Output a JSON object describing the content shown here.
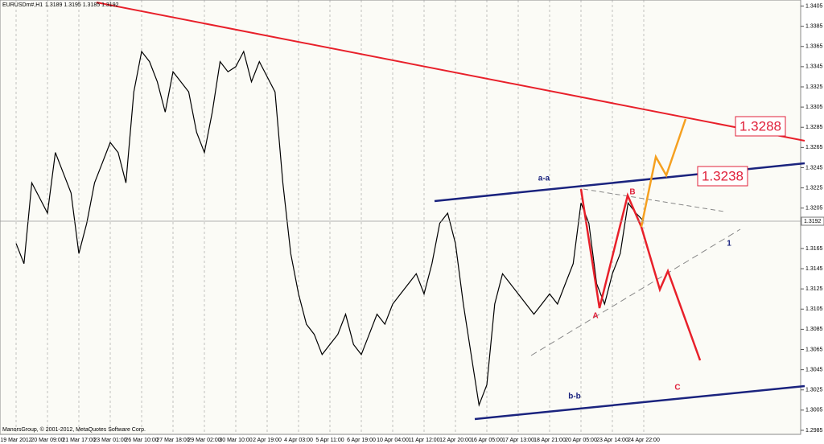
{
  "header": {
    "title": "EURUSDm#,H1",
    "ohlc": "1.3189 1.3195 1.3185 1.3192"
  },
  "footer": "ManorsGroup, © 2001-2012, MetaQuotes Software Corp.",
  "chart_data": {
    "type": "line",
    "color": "#000000",
    "categories": [
      "19 Mar 2012",
      null,
      null,
      null,
      "20 Mar 09:00",
      null,
      null,
      null,
      "21 Mar 17:00",
      null,
      null,
      null,
      "23 Mar 01:00",
      null,
      null,
      null,
      "26 Mar 10:00",
      null,
      null,
      null,
      "27 Mar 18:00",
      null,
      null,
      null,
      "29 Mar 02:00",
      null,
      null,
      null,
      "30 Mar 10:00",
      null,
      null,
      null,
      "2 Apr 19:00",
      null,
      null,
      null,
      "4 Apr 03:00",
      null,
      null,
      null,
      "5 Apr 11:00",
      null,
      null,
      null,
      "6 Apr 19:00",
      null,
      null,
      null,
      "10 Apr 04:00",
      null,
      null,
      null,
      "11 Apr 12:00",
      null,
      null,
      null,
      "12 Apr 20:00",
      null,
      null,
      null,
      "16 Apr 05:00",
      null,
      null,
      null,
      "17 Apr 13:00",
      null,
      null,
      null,
      "18 Apr 21:00",
      null,
      null,
      null,
      "20 Apr 05:00",
      null,
      null,
      null,
      "23 Apr 14:00",
      null,
      null,
      null,
      "24 Apr 22:00",
      null,
      null,
      null,
      null,
      null,
      null,
      null,
      null,
      null,
      null,
      null,
      null,
      null,
      null,
      null,
      null,
      null,
      null,
      null
    ],
    "values": [
      1.317,
      1.315,
      1.323,
      1.3215,
      1.32,
      1.326,
      1.324,
      1.322,
      1.316,
      1.319,
      1.323,
      1.325,
      1.327,
      1.326,
      1.323,
      1.332,
      1.336,
      1.335,
      1.333,
      1.33,
      1.334,
      1.333,
      1.332,
      1.328,
      1.326,
      1.33,
      1.335,
      1.334,
      1.3345,
      1.336,
      1.333,
      1.335,
      1.3335,
      1.332,
      1.323,
      1.316,
      1.312,
      1.309,
      1.308,
      1.306,
      1.307,
      1.308,
      1.31,
      1.307,
      1.306,
      1.308,
      1.31,
      1.309,
      1.311,
      1.312,
      1.313,
      1.314,
      1.312,
      1.315,
      1.319,
      1.32,
      1.317,
      1.311,
      1.306,
      1.301,
      1.303,
      1.311,
      1.314,
      1.313,
      1.312,
      1.311,
      1.31,
      1.311,
      1.312,
      1.311,
      1.313,
      1.315,
      1.321,
      1.319,
      1.313,
      1.311,
      1.314,
      1.316,
      1.321,
      1.32,
      1.3192,
      null,
      null,
      null,
      null,
      null,
      null,
      null,
      null,
      null,
      null,
      null,
      null,
      null,
      null,
      null,
      null,
      null,
      null,
      null
    ],
    "ylim": [
      1.2981,
      1.3411
    ],
    "yticks": [
      1.3405,
      1.3385,
      1.3365,
      1.3345,
      1.3325,
      1.3305,
      1.3285,
      1.3265,
      1.3245,
      1.3225,
      1.3205,
      1.3165,
      1.3145,
      1.3125,
      1.3105,
      1.3085,
      1.3065,
      1.3045,
      1.3025,
      1.3005,
      1.2985
    ],
    "last_price": 1.3192,
    "grid": true,
    "annotations": {
      "aa": "a-a",
      "bb": "b-b",
      "A": "A",
      "B": "B",
      "C": "C",
      "one": "1",
      "target1": "1.3288",
      "target2": "1.3238"
    }
  }
}
